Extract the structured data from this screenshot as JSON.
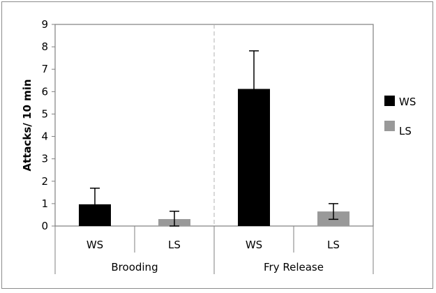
{
  "chart_data": {
    "type": "bar",
    "title": "",
    "xlabel": "",
    "ylabel": "Attacks/ 10 min",
    "ylim": [
      0,
      9
    ],
    "yticks": [
      "0",
      "1",
      "2",
      "3",
      "4",
      "5",
      "6",
      "7",
      "8",
      "9"
    ],
    "groups": [
      {
        "label": "Brooding",
        "categories": [
          "WS",
          "LS"
        ]
      },
      {
        "label": "Fry Release",
        "categories": [
          "WS",
          "LS"
        ]
      }
    ],
    "bars": [
      {
        "group": "Brooding",
        "category": "WS",
        "value": 0.97,
        "error": 0.72,
        "series": "WS"
      },
      {
        "group": "Brooding",
        "category": "LS",
        "value": 0.31,
        "error": 0.35,
        "series": "LS"
      },
      {
        "group": "Fry Release",
        "category": "WS",
        "value": 6.12,
        "error": 1.7,
        "series": "WS"
      },
      {
        "group": "Fry Release",
        "category": "LS",
        "value": 0.65,
        "error": 0.35,
        "series": "LS"
      }
    ],
    "legend": {
      "position": "right",
      "entries": [
        {
          "name": "WS",
          "color": "#000000"
        },
        {
          "name": "LS",
          "color": "#999999"
        }
      ]
    },
    "group_separator": "dashed",
    "grid": false
  }
}
